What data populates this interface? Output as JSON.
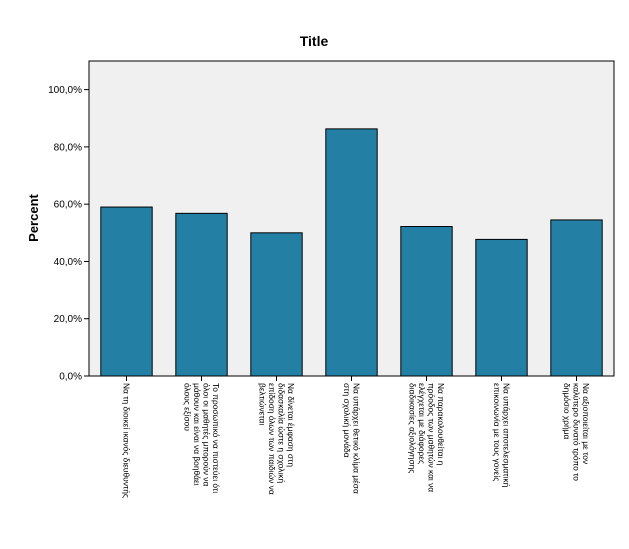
{
  "chart_data": {
    "type": "bar",
    "title": "Title",
    "xlabel": "",
    "ylabel": "Percent",
    "ylim": [
      0,
      110
    ],
    "yticks": [
      0,
      20,
      40,
      60,
      80,
      100
    ],
    "ytick_labels": [
      "0,0%",
      "20,0%",
      "40,0%",
      "60,0%",
      "80,0%",
      "100,0%"
    ],
    "grid": false,
    "legend": "none",
    "categories": [
      [
        "Να τη διοικεί ικανός διευθυντής"
      ],
      [
        "Το προσωπικό να πιστεύει ότι",
        "όλοι οι μαθητές μπορούν να",
        "μάθουν και είναι να βοηθάει",
        "όλους εξίσου"
      ],
      [
        "Να δίνεται έμφαση στη",
        "διδασκαλία ώστε η σχολική",
        "επίδοση όλων των παιδιών να",
        "βελτιώνεται"
      ],
      [
        "Να υπάρχει θετικό κλίμα μέσα",
        "στη σχολική μονάδα"
      ],
      [
        "Να παρακολουθείται η",
        "πρόοδος των μαθητών και να",
        "ελέγχεται με διάφορες",
        "διαδικασίες αξιολόγησης"
      ],
      [
        "Να υπάρχει  αποτελεσματική",
        "επικοινωνία με τους γονείς"
      ],
      [
        "Να αξιοποιείται με τον",
        "καλύτερο δυνατό τρόπο το",
        "δημόσιο χρήμα"
      ]
    ],
    "values": [
      59.0,
      56.8,
      50.0,
      86.3,
      52.2,
      47.7,
      54.5
    ],
    "colors": {
      "bar_fill": "#2380A4",
      "bar_stroke": "#000000",
      "plot_background": "#F0F0F0",
      "axis": "#000000"
    }
  }
}
